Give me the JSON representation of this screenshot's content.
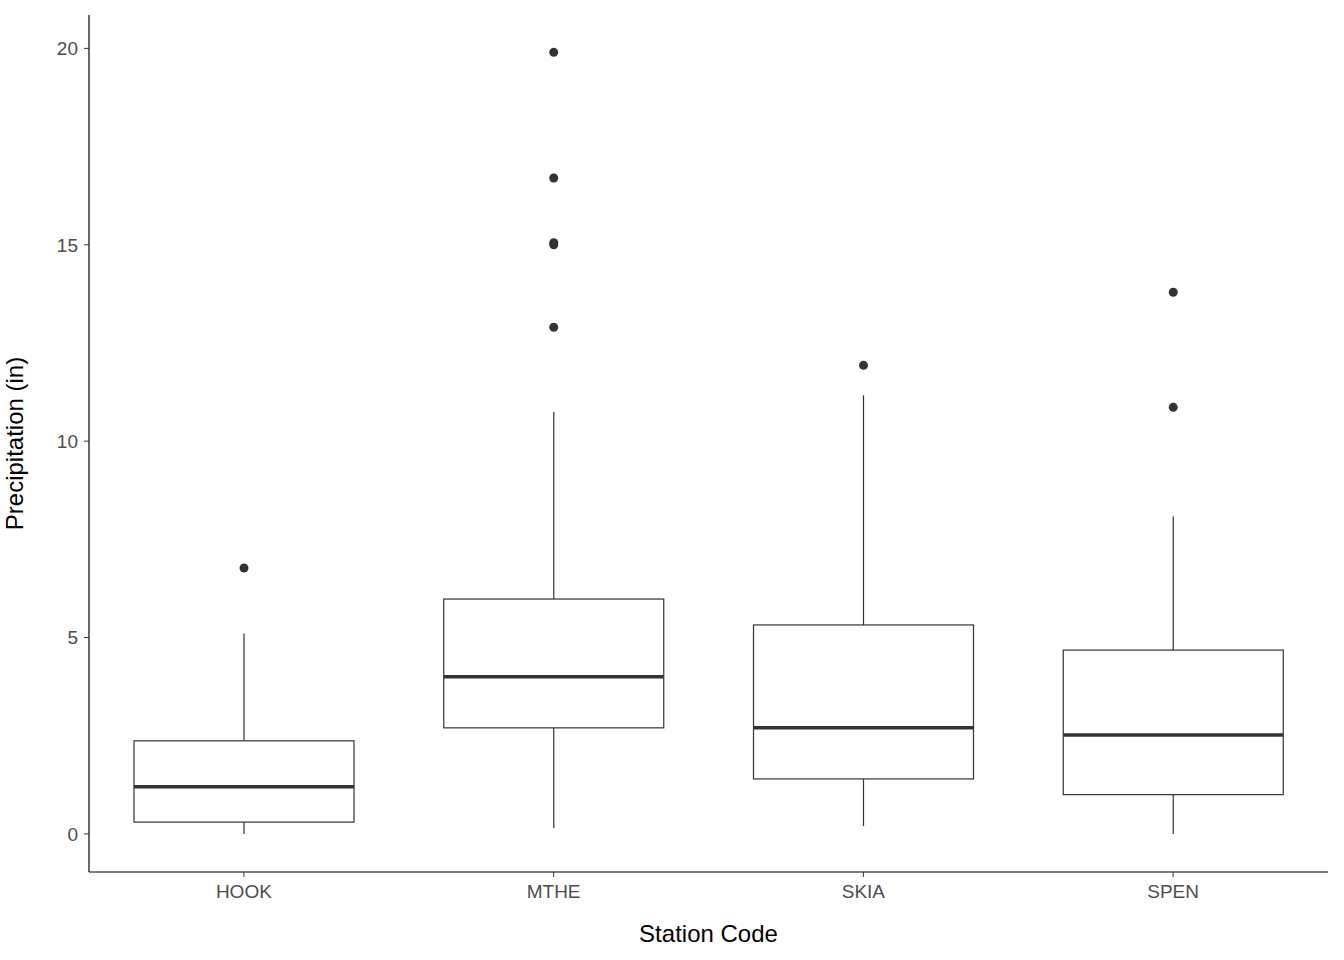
{
  "chart_data": {
    "type": "box",
    "x_label": "Station Code",
    "y_label": "Precipitation (in)",
    "categories": [
      "HOOK",
      "MTHE",
      "SKIA",
      "SPEN"
    ],
    "whisker_low": [
      0,
      0.15,
      0.2,
      0
    ],
    "q1": [
      0.3,
      2.7,
      1.4,
      1.0
    ],
    "median": [
      1.2,
      4.0,
      2.7,
      2.52
    ],
    "q3": [
      2.37,
      5.98,
      5.32,
      4.68
    ],
    "whisker_high": [
      5.1,
      10.74,
      11.17,
      8.09
    ],
    "outliers": [
      [
        6.77
      ],
      [
        19.9,
        16.7,
        15.05,
        15.0,
        12.9
      ],
      [
        11.93
      ],
      [
        13.79,
        10.86
      ]
    ],
    "color": "#333333",
    "ylim": [
      -0.97,
      20.85
    ],
    "yticks": [
      0,
      5,
      10,
      15,
      20
    ],
    "grid": false
  }
}
